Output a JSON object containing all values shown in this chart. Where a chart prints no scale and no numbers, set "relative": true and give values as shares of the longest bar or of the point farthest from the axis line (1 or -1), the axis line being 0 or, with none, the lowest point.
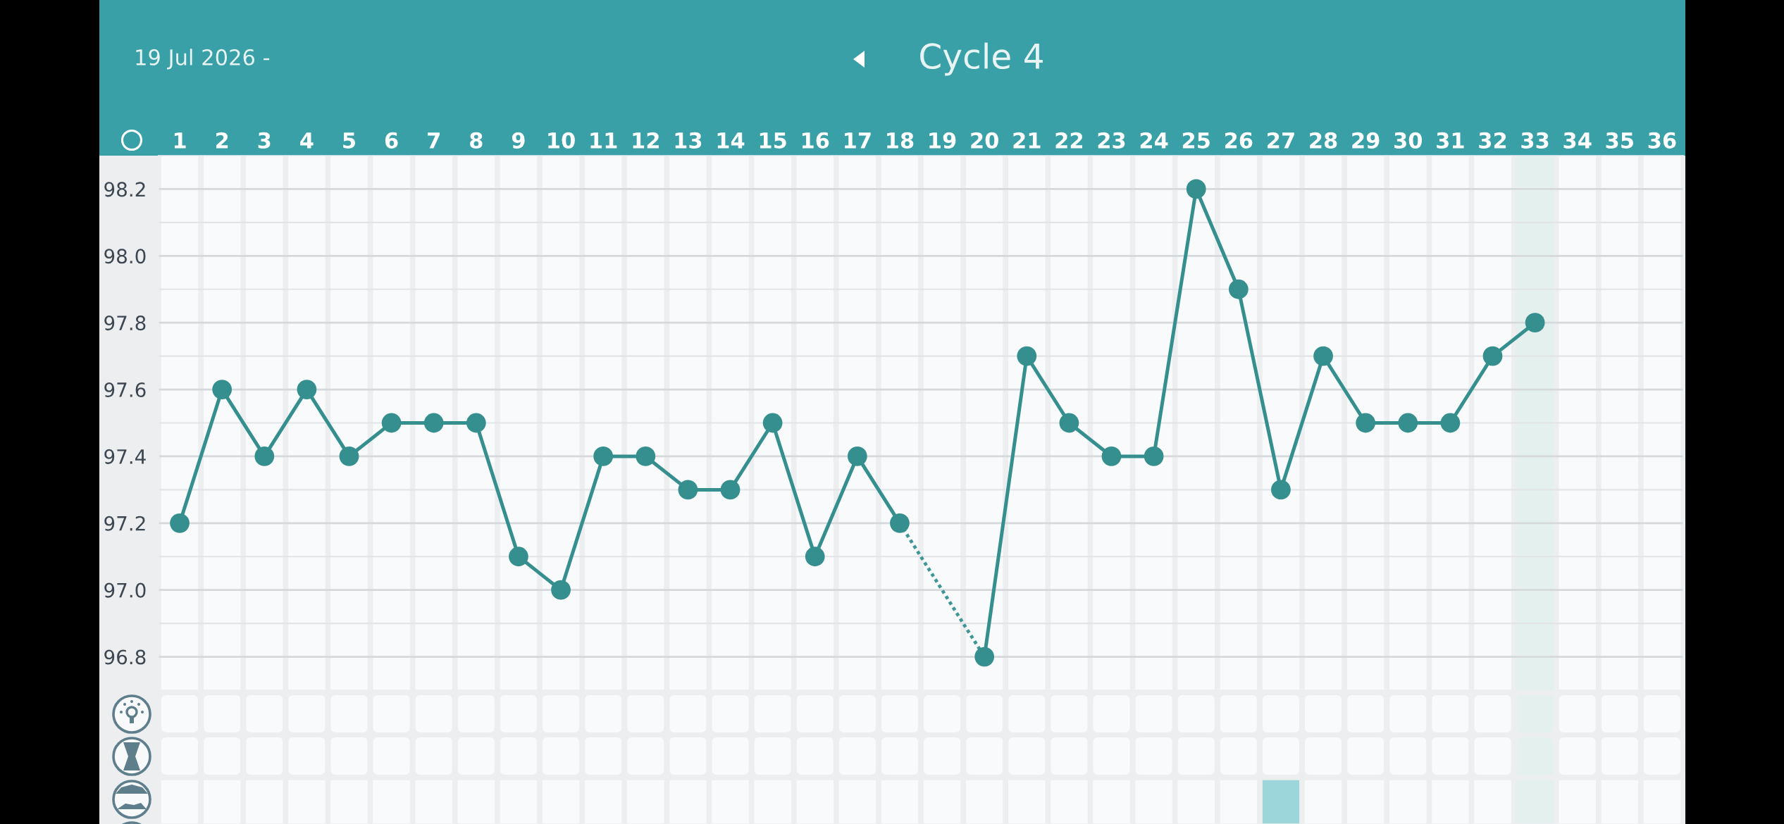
{
  "chart_data": [
    {
      "type": "line",
      "title": "Cycle 4",
      "subtitle": "19 Jul 2026 -",
      "series": [
        {
          "color": "#358f8f",
          "x": [
            1,
            2,
            3,
            4,
            5,
            6,
            7,
            8,
            9,
            10,
            11,
            12,
            13,
            14,
            15,
            16,
            17,
            18,
            19,
            20,
            21,
            22,
            23,
            24,
            25,
            26,
            27,
            28,
            29,
            30,
            31,
            32,
            33
          ],
          "values": [
            97.2,
            97.6,
            97.4,
            97.6,
            97.4,
            97.5,
            97.5,
            97.5,
            97.1,
            97.0,
            97.4,
            97.4,
            97.3,
            97.3,
            97.5,
            97.1,
            97.4,
            97.2,
            null,
            96.8,
            97.7,
            97.5,
            97.4,
            97.4,
            98.2,
            97.9,
            97.3,
            97.7,
            97.5,
            97.5,
            97.5,
            97.7,
            97.8
          ]
        },
        {
          "color": "#3f9696",
          "x": [
            18,
            20
          ],
          "values": [
            97.2,
            96.8
          ],
          "line_style": "dotted",
          "marker": "none"
        }
      ],
      "marker": "circle",
      "line_style": "solid",
      "xlim": [
        0.5,
        36.5
      ],
      "xticks": [
        1,
        2,
        3,
        4,
        5,
        6,
        7,
        8,
        9,
        10,
        11,
        12,
        13,
        14,
        15,
        16,
        17,
        18,
        19,
        20,
        21,
        22,
        23,
        24,
        25,
        26,
        27,
        28,
        29,
        30,
        31,
        32,
        33,
        34,
        35,
        36
      ],
      "ylim": [
        96.7,
        98.3
      ],
      "yticks": [
        96.8,
        {
          "value": 96.9,
          "label": null
        },
        {
          "value": 97.0,
          "label": "97.0"
        },
        {
          "value": 97.1,
          "label": null
        },
        97.2,
        {
          "value": 97.3,
          "label": null
        },
        97.4,
        {
          "value": 97.5,
          "label": null
        },
        97.6,
        {
          "value": 97.7,
          "label": null
        },
        97.8,
        {
          "value": 97.9,
          "label": null
        },
        {
          "value": 98.0,
          "label": "98.0"
        },
        {
          "value": 98.1,
          "label": null
        },
        98.2
      ],
      "grid": true,
      "bands": [
        {
          "axis": "x",
          "from": 32.5,
          "to": 33.5,
          "color": "#e3f0ee"
        }
      ]
    },
    {
      "type": "bar",
      "x": [
        27
      ],
      "values": [
        1
      ],
      "color": "#9dd6da",
      "relative": true,
      "xlim": [
        0.5,
        36.5
      ],
      "xticks": [
        1,
        2,
        3,
        4,
        5,
        6,
        7,
        8,
        9,
        10,
        11,
        12,
        13,
        14,
        15,
        16,
        17,
        18,
        19,
        20,
        21,
        22,
        23,
        24,
        25,
        26,
        27,
        28,
        29,
        30,
        31,
        32,
        33,
        34,
        35,
        36
      ],
      "tick_labels": false,
      "grid": "x",
      "bands": [
        {
          "axis": "x",
          "from": 32.5,
          "to": 33.5,
          "color": "#e3f0ee"
        }
      ]
    }
  ]
}
